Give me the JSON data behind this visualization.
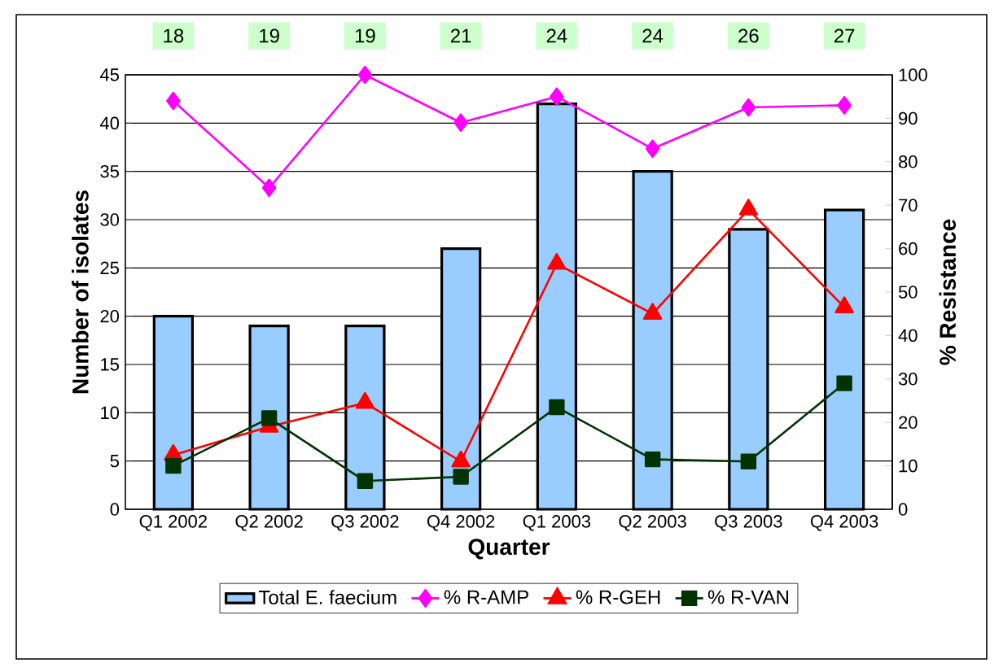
{
  "chart_data": {
    "type": "bar",
    "xlabel": "Quarter",
    "ylabel": "Number of isolates",
    "y2label": "% Resistance",
    "categories": [
      "Q1 2002",
      "Q2 2002",
      "Q3 2002",
      "Q4 2002",
      "Q1 2003",
      "Q2 2003",
      "Q3 2003",
      "Q4 2003"
    ],
    "series": [
      {
        "name": "Total E. faecium",
        "color": "#99ccff",
        "values": [
          20,
          19,
          19,
          27,
          42,
          35,
          29,
          31
        ]
      },
      {
        "name": "% R-AMP",
        "type": "line",
        "axis": "y2",
        "marker": "diamond",
        "color": "#ff00ff",
        "values": [
          94,
          74,
          100,
          89,
          95,
          83,
          92.5,
          93
        ]
      },
      {
        "name": "% R-GEH",
        "type": "line",
        "axis": "y2",
        "marker": "triangle",
        "color": "#ff0000",
        "values": [
          12.5,
          19,
          24.5,
          11,
          56.5,
          45,
          69,
          46.5
        ]
      },
      {
        "name": "% R-VAN",
        "type": "line",
        "axis": "y2",
        "marker": "square",
        "color": "#003300",
        "values": [
          10,
          21,
          6.5,
          7.5,
          23.5,
          11.5,
          11,
          29
        ]
      }
    ],
    "ylim": [
      0,
      45
    ],
    "yticks": [
      0,
      5,
      10,
      15,
      20,
      25,
      30,
      35,
      40,
      45
    ],
    "y2lim": [
      0,
      100
    ],
    "y2ticks": [
      0,
      10,
      20,
      30,
      40,
      50,
      60,
      70,
      80,
      90,
      100
    ],
    "annotations": [
      "18",
      "19",
      "19",
      "21",
      "24",
      "24",
      "26",
      "27"
    ],
    "grid": "y",
    "legend": "bottom"
  }
}
